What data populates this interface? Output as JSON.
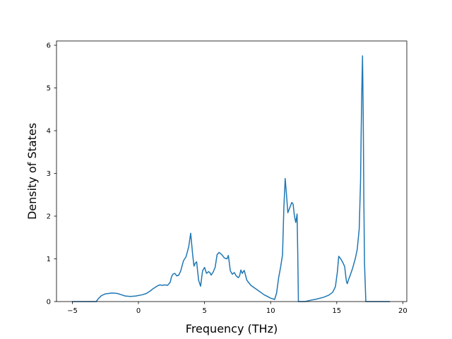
{
  "chart_data": {
    "type": "line",
    "title": "",
    "xlabel": "Frequency (THz)",
    "ylabel": "Density of States",
    "xlim": [
      -6.2,
      20.3
    ],
    "ylim": [
      0,
      6.1
    ],
    "xticks": [
      -5,
      0,
      5,
      10,
      15,
      20
    ],
    "yticks": [
      0,
      1,
      2,
      3,
      4,
      5,
      6
    ],
    "grid": false,
    "legend": "none",
    "line_color": "#1f77b4",
    "series": [
      {
        "x": [
          -5.0,
          -4.0,
          -3.2,
          -3.0,
          -2.8,
          -2.5,
          -2.0,
          -1.6,
          -1.3,
          -1.0,
          -0.6,
          -0.2,
          0.3,
          0.6,
          0.9,
          1.1,
          1.4,
          1.6,
          1.8,
          2.0,
          2.2,
          2.4,
          2.5,
          2.6,
          2.75,
          2.9,
          3.05,
          3.2,
          3.4,
          3.6,
          3.8,
          3.95,
          4.1,
          4.2,
          4.3,
          4.4,
          4.55,
          4.7,
          4.85,
          5.0,
          5.15,
          5.3,
          5.4,
          5.5,
          5.65,
          5.8,
          5.95,
          6.1,
          6.3,
          6.5,
          6.7,
          6.8,
          6.95,
          7.1,
          7.25,
          7.4,
          7.55,
          7.65,
          7.75,
          7.85,
          8.0,
          8.2,
          8.5,
          9.0,
          9.5,
          10.0,
          10.3,
          10.45,
          10.6,
          10.75,
          10.9,
          11.0,
          11.1,
          11.2,
          11.3,
          11.45,
          11.6,
          11.7,
          11.8,
          11.9,
          12.0,
          12.05,
          12.1,
          12.3,
          12.6,
          13.0,
          13.5,
          14.0,
          14.4,
          14.7,
          14.9,
          15.05,
          15.15,
          15.3,
          15.45,
          15.6,
          15.7,
          15.75,
          15.8,
          15.9,
          16.0,
          16.2,
          16.4,
          16.55,
          16.7,
          16.8,
          16.85,
          16.9,
          16.95,
          17.0,
          17.05,
          17.1,
          17.2,
          17.3,
          18.0,
          19.0
        ],
        "y": [
          0.0,
          0.0,
          0.0,
          0.08,
          0.14,
          0.18,
          0.2,
          0.19,
          0.16,
          0.13,
          0.12,
          0.13,
          0.16,
          0.19,
          0.25,
          0.3,
          0.36,
          0.39,
          0.38,
          0.39,
          0.38,
          0.45,
          0.58,
          0.64,
          0.66,
          0.6,
          0.62,
          0.72,
          0.95,
          1.05,
          1.28,
          1.6,
          1.1,
          0.83,
          0.9,
          0.93,
          0.5,
          0.36,
          0.72,
          0.8,
          0.66,
          0.7,
          0.68,
          0.62,
          0.69,
          0.8,
          1.1,
          1.15,
          1.1,
          1.02,
          1.0,
          1.08,
          0.72,
          0.64,
          0.68,
          0.6,
          0.56,
          0.6,
          0.74,
          0.66,
          0.73,
          0.5,
          0.38,
          0.27,
          0.16,
          0.08,
          0.05,
          0.2,
          0.55,
          0.8,
          1.1,
          2.2,
          2.88,
          2.5,
          2.08,
          2.2,
          2.32,
          2.28,
          2.0,
          1.85,
          2.05,
          1.15,
          0.0,
          0.0,
          0.0,
          0.03,
          0.06,
          0.1,
          0.15,
          0.22,
          0.35,
          0.7,
          1.06,
          1.0,
          0.92,
          0.82,
          0.55,
          0.45,
          0.42,
          0.52,
          0.6,
          0.78,
          1.0,
          1.22,
          1.7,
          2.8,
          4.0,
          5.0,
          5.75,
          4.5,
          2.4,
          0.9,
          0.0,
          0.0,
          0.0,
          0.0
        ]
      }
    ]
  }
}
